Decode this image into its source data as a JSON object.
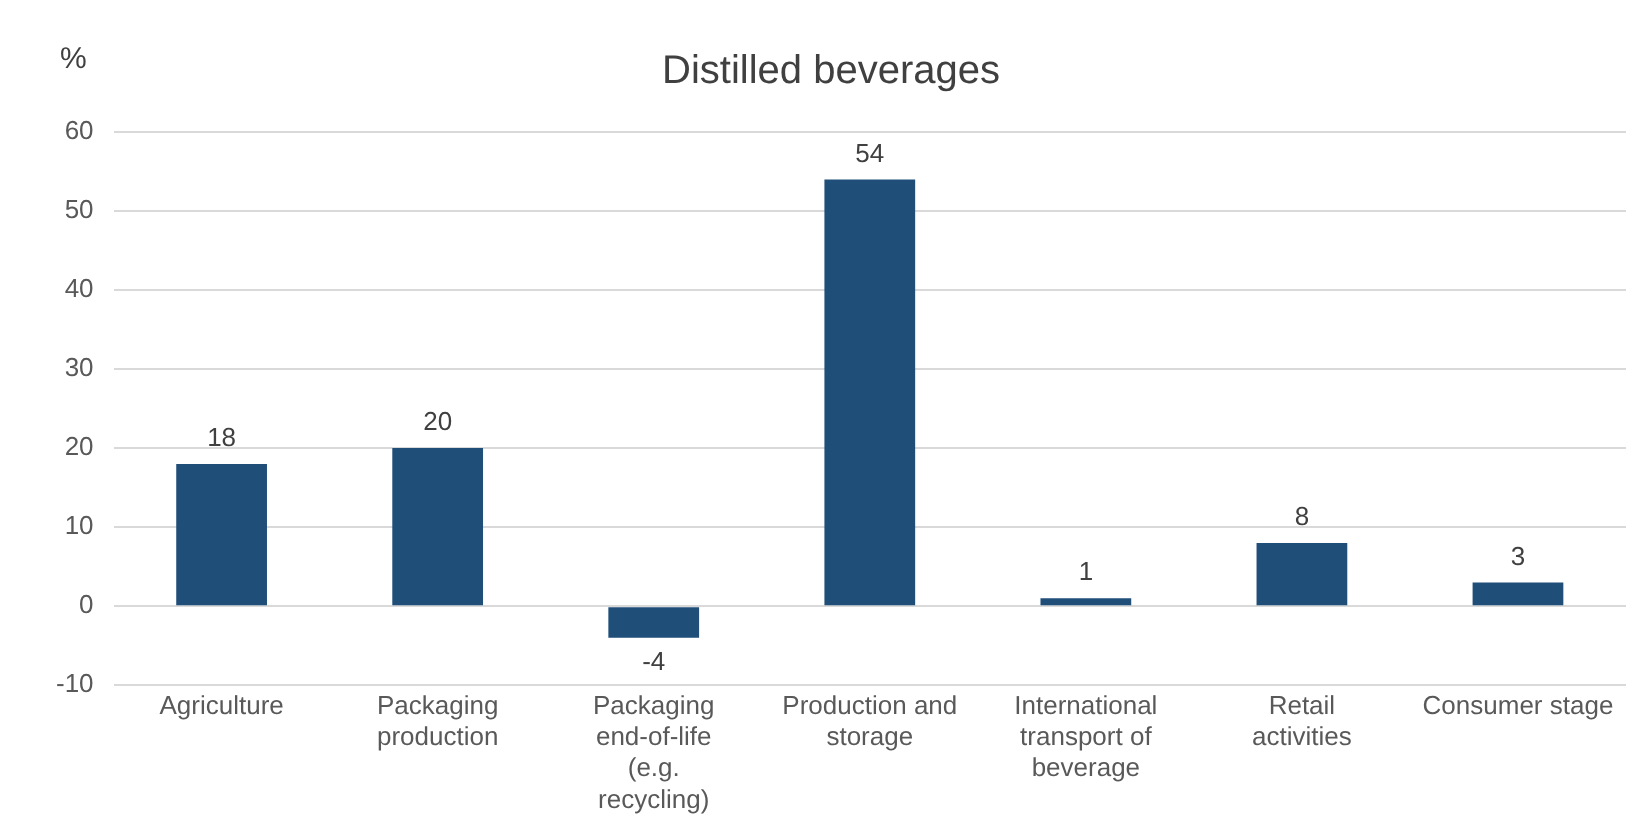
{
  "chart_data": {
    "type": "bar",
    "title": "Distilled beverages",
    "ylabel": "%",
    "categories": [
      "Agriculture",
      "Packaging production",
      "Packaging end-of-life (e.g. recycling)",
      "Production and storage",
      "International transport of beverage",
      "Retail activities",
      "Consumer stage"
    ],
    "values": [
      18,
      20,
      -4,
      54,
      1,
      8,
      3
    ],
    "color": "#1f4e79",
    "ylim": [
      -10,
      60
    ],
    "yticks": [
      -10,
      0,
      10,
      20,
      30,
      40,
      50,
      60
    ],
    "grid": "y",
    "data_labels": true
  }
}
